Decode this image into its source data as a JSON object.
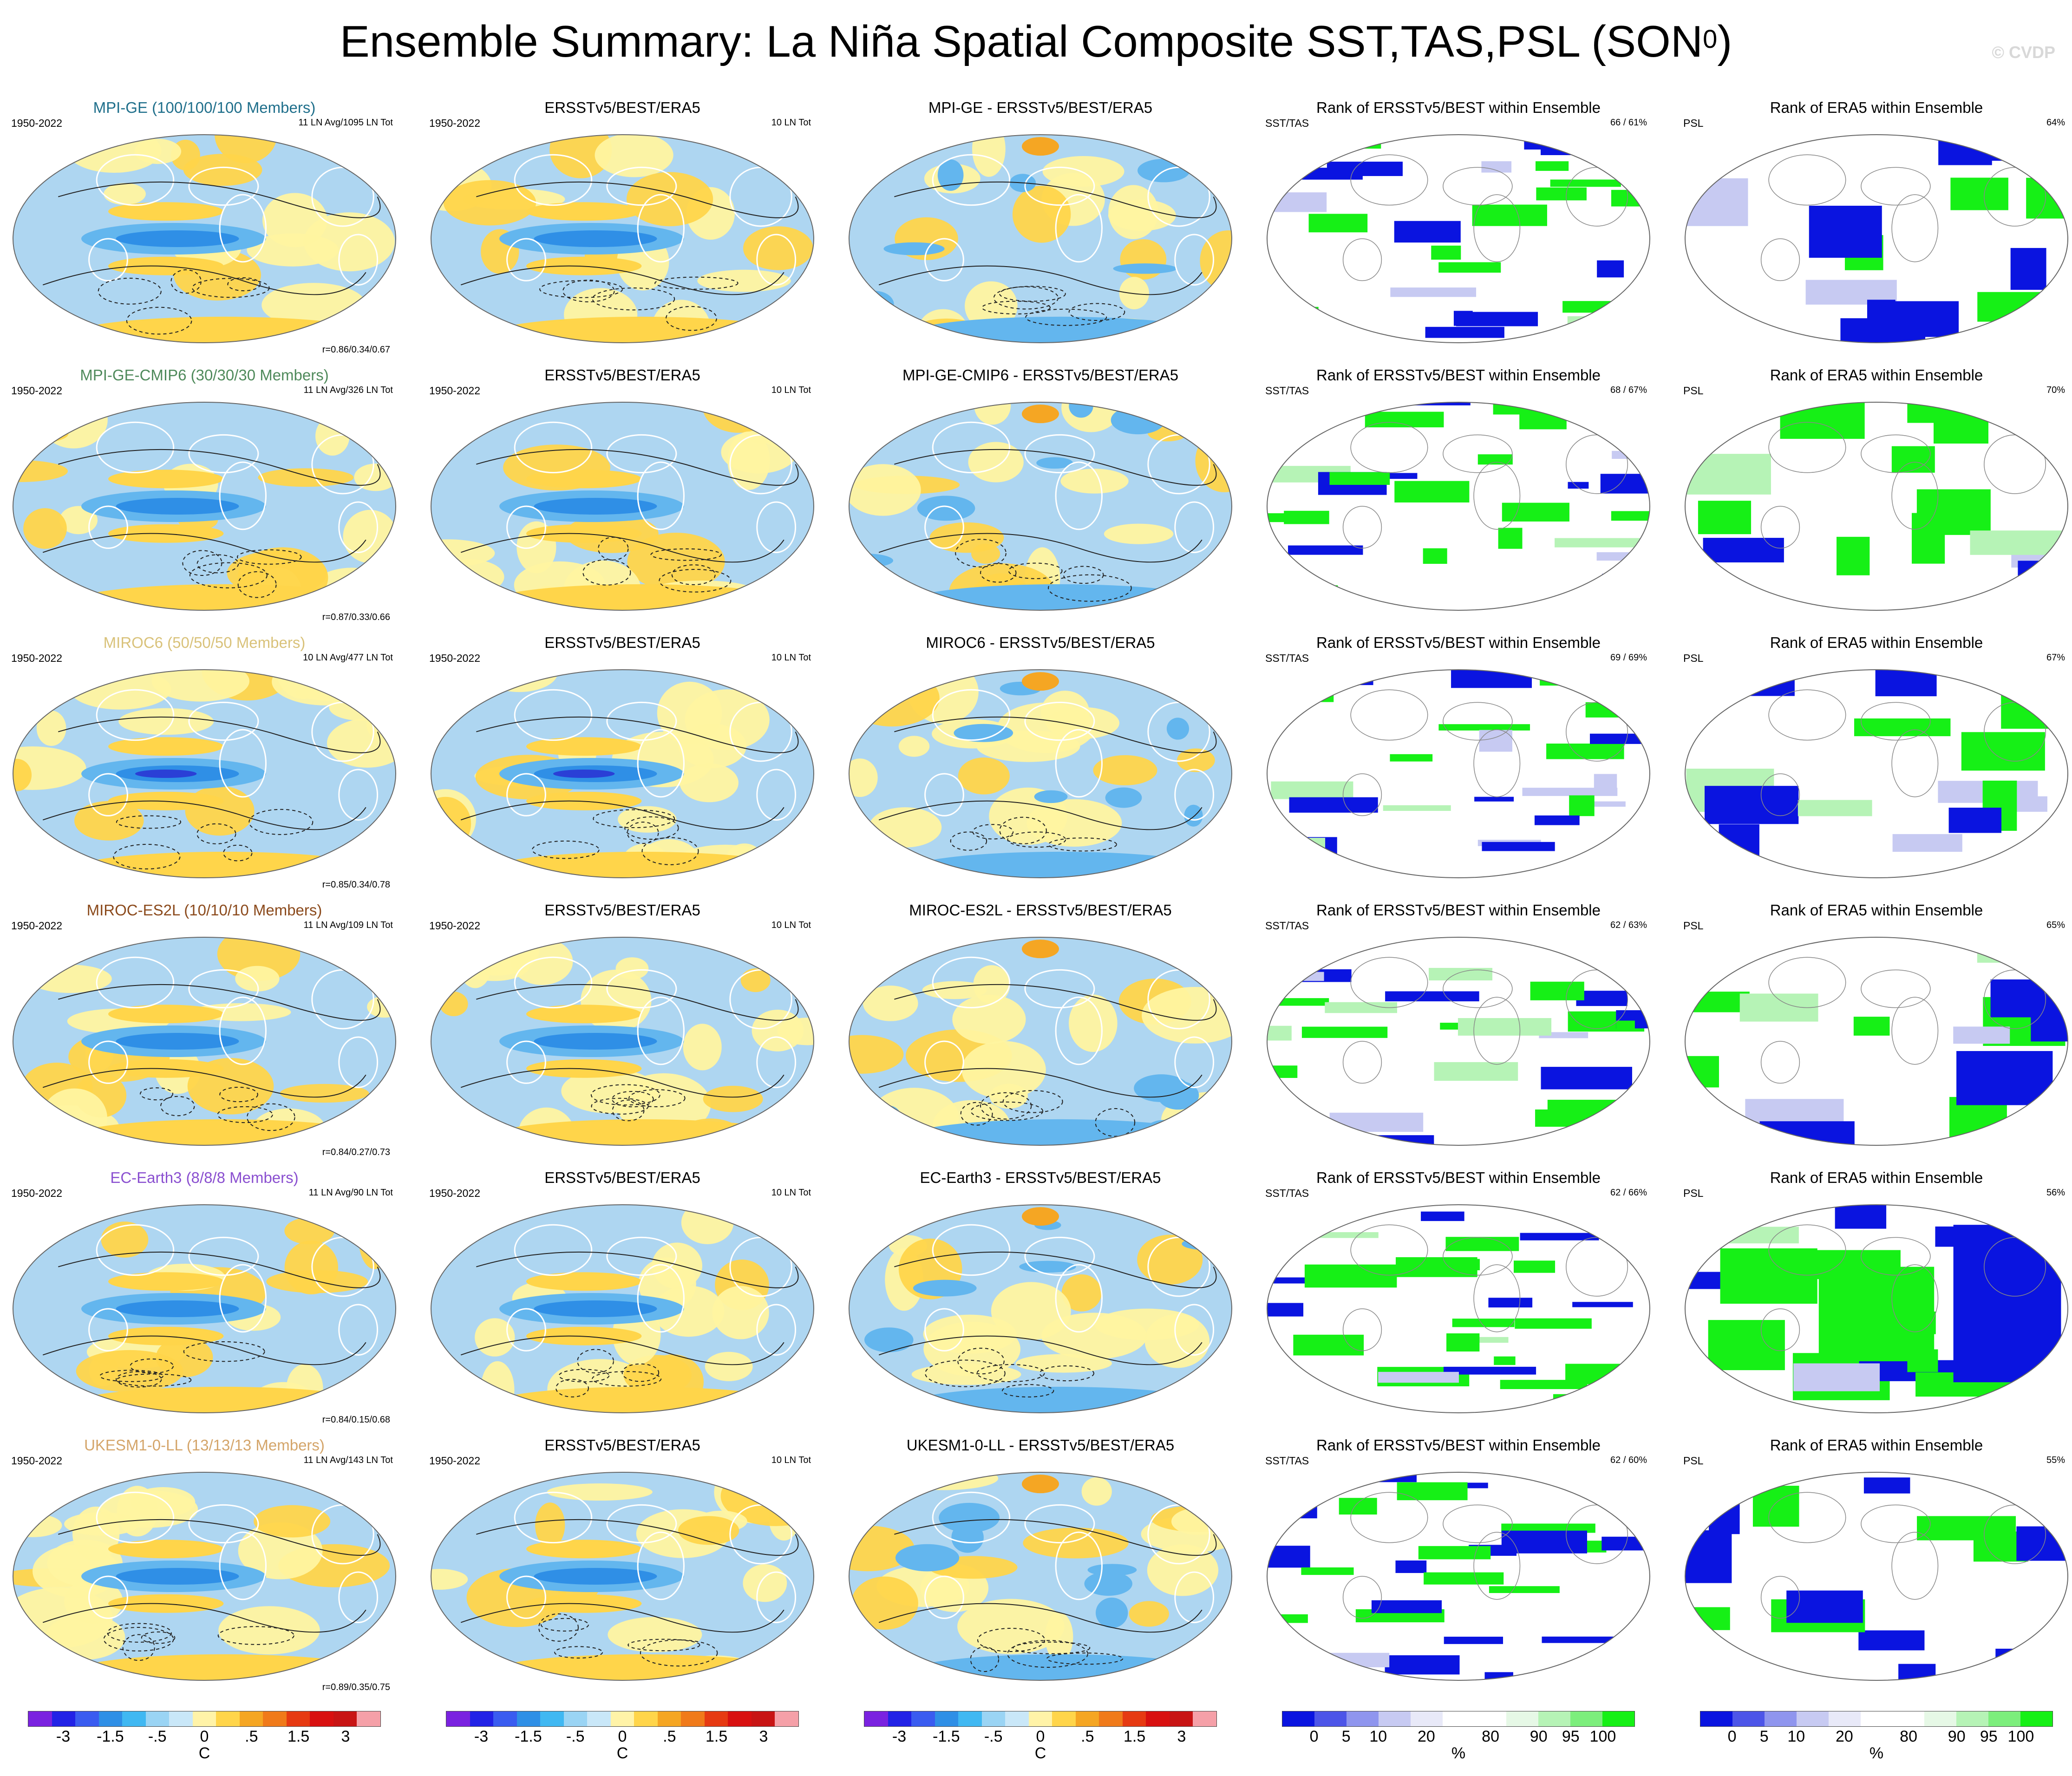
{
  "page": {
    "title": "Ensemble Summary: La Niña Spatial Composite SST,TAS,PSL (SON",
    "title_superscript": "0",
    "title_suffix": ")",
    "copyright": "© CVDP"
  },
  "colors": {
    "ocean_neg_light": "#aed6f1",
    "ocean_neg_mid": "#63b6ee",
    "ocean_neg_strong": "#2f8fe6",
    "ocean_neg_deep": "#2a3fd6",
    "pos_light": "#fff4a0",
    "pos_mid": "#ffd54a",
    "pos_strong": "#f5a623",
    "rank_blue": "#0a14e0",
    "rank_lavender": "#c7caf2",
    "rank_green": "#16f016",
    "rank_palegreen": "#b6f3b6"
  },
  "chart_data": {
    "type": "heatmap",
    "description_grid": "6 rows (models) x 5 columns (model composite, observations composite, difference, SST/TAS rank, PSL rank)",
    "rows": [
      {
        "model": "MPI-GE",
        "color": "#1f6f8b",
        "model_title": "MPI-GE (100/100/100 Members)",
        "years": "1950-2022",
        "model_stat": "11 LN Avg/1095 LN Tot",
        "corr": "r=0.86/0.34/0.67",
        "obs_title": "ERSSTv5/BEST/ERA5",
        "obs_years": "1950-2022",
        "obs_stat": "10 LN Tot",
        "diff_title": "MPI-GE - ERSSTv5/BEST/ERA5",
        "rank_sst_title": "Rank of ERSSTv5/BEST within Ensemble",
        "rank_sst_label": "SST/TAS",
        "rank_sst_pct": "66 /  61%",
        "rank_psl_title": "Rank of ERA5 within Ensemble",
        "rank_psl_label": "PSL",
        "rank_psl_pct": "64%"
      },
      {
        "model": "MPI-GE-CMIP6",
        "color": "#4f8a5b",
        "model_title": "MPI-GE-CMIP6 (30/30/30 Members)",
        "years": "1950-2022",
        "model_stat": "11 LN Avg/326 LN Tot",
        "corr": "r=0.87/0.33/0.66",
        "obs_title": "ERSSTv5/BEST/ERA5",
        "obs_years": "1950-2022",
        "obs_stat": "10 LN Tot",
        "diff_title": "MPI-GE-CMIP6 - ERSSTv5/BEST/ERA5",
        "rank_sst_title": "Rank of ERSSTv5/BEST within Ensemble",
        "rank_sst_label": "SST/TAS",
        "rank_sst_pct": "68 /  67%",
        "rank_psl_title": "Rank of ERA5 within Ensemble",
        "rank_psl_label": "PSL",
        "rank_psl_pct": "70%"
      },
      {
        "model": "MIROC6",
        "color": "#d9c27a",
        "model_title": "MIROC6 (50/50/50 Members)",
        "years": "1950-2022",
        "model_stat": "10 LN Avg/477 LN Tot",
        "corr": "r=0.85/0.34/0.78",
        "obs_title": "ERSSTv5/BEST/ERA5",
        "obs_years": "1950-2022",
        "obs_stat": "10 LN Tot",
        "diff_title": "MIROC6 - ERSSTv5/BEST/ERA5",
        "rank_sst_title": "Rank of ERSSTv5/BEST within Ensemble",
        "rank_sst_label": "SST/TAS",
        "rank_sst_pct": "69 /  69%",
        "rank_psl_title": "Rank of ERA5 within Ensemble",
        "rank_psl_label": "PSL",
        "rank_psl_pct": "67%"
      },
      {
        "model": "MIROC-ES2L",
        "color": "#8b4a1c",
        "model_title": "MIROC-ES2L (10/10/10 Members)",
        "years": "1950-2022",
        "model_stat": "11 LN Avg/109 LN Tot",
        "corr": "r=0.84/0.27/0.73",
        "obs_title": "ERSSTv5/BEST/ERA5",
        "obs_years": "1950-2022",
        "obs_stat": "10 LN Tot",
        "diff_title": "MIROC-ES2L - ERSSTv5/BEST/ERA5",
        "rank_sst_title": "Rank of ERSSTv5/BEST within Ensemble",
        "rank_sst_label": "SST/TAS",
        "rank_sst_pct": "62 /  63%",
        "rank_psl_title": "Rank of ERA5 within Ensemble",
        "rank_psl_label": "PSL",
        "rank_psl_pct": "65%"
      },
      {
        "model": "EC-Earth3",
        "color": "#8a4fd0",
        "model_title": "EC-Earth3 (8/8/8 Members)",
        "years": "1950-2022",
        "model_stat": "11 LN Avg/90 LN Tot",
        "corr": "r=0.84/0.15/0.68",
        "obs_title": "ERSSTv5/BEST/ERA5",
        "obs_years": "1950-2022",
        "obs_stat": "10 LN Tot",
        "diff_title": "EC-Earth3 - ERSSTv5/BEST/ERA5",
        "rank_sst_title": "Rank of ERSSTv5/BEST within Ensemble",
        "rank_sst_label": "SST/TAS",
        "rank_sst_pct": "62 /  66%",
        "rank_psl_title": "Rank of ERA5 within Ensemble",
        "rank_psl_label": "PSL",
        "rank_psl_pct": "56%"
      },
      {
        "model": "UKESM1-0-LL",
        "color": "#d4a56a",
        "model_title": "UKESM1-0-LL (13/13/13 Members)",
        "years": "1950-2022",
        "model_stat": "11 LN Avg/143 LN Tot",
        "corr": "r=0.89/0.35/0.75",
        "obs_title": "ERSSTv5/BEST/ERA5",
        "obs_years": "1950-2022",
        "obs_stat": "10 LN Tot",
        "diff_title": "UKESM1-0-LL - ERSSTv5/BEST/ERA5",
        "rank_sst_title": "Rank of ERSSTv5/BEST within Ensemble",
        "rank_sst_label": "SST/TAS",
        "rank_sst_pct": "62 /  60%",
        "rank_psl_title": "Rank of ERA5 within Ensemble",
        "rank_psl_label": "PSL",
        "rank_psl_pct": "55%"
      }
    ],
    "colorbars": [
      {
        "name": "temperature-anomaly",
        "unit": "C",
        "colors": [
          "#7a22e0",
          "#2222e6",
          "#3a5cf0",
          "#2f8fe6",
          "#40b8f2",
          "#9ad4f4",
          "#c9e7f8",
          "#fff3a8",
          "#ffd54a",
          "#f5a623",
          "#f07a1a",
          "#e63a12",
          "#d81010",
          "#c81414",
          "#f5a0a8"
        ],
        "ticks": [
          "-3",
          "-1.5",
          "-.5",
          "0",
          ".5",
          "1.5",
          "3"
        ],
        "tick_slots": [
          1.5,
          3.5,
          5.5,
          7.5,
          9.5,
          11.5,
          13.5
        ]
      },
      {
        "name": "rank-percent",
        "unit": "%",
        "colors": [
          "#0a14e0",
          "#4d55e8",
          "#8f95ee",
          "#c7caf2",
          "#e8e9f8",
          "#ffffff",
          "#ffffff",
          "#e6f8e6",
          "#b6f3b6",
          "#7cee7c",
          "#16f016"
        ],
        "ticks": [
          "0",
          "5",
          "10",
          "20",
          "80",
          "90",
          "95",
          "100"
        ],
        "tick_slots": [
          1,
          2,
          3,
          4.5,
          6.5,
          8,
          9,
          10
        ]
      }
    ]
  }
}
